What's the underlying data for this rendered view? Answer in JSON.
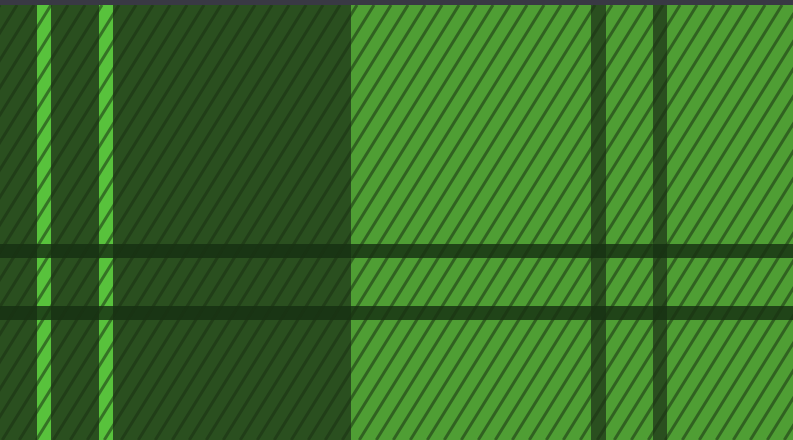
{
  "pattern": {
    "type": "tartan-plaid",
    "colors": {
      "frame": "#393944",
      "dark_green": "#2a4f1f",
      "light_green": "#4f9e34",
      "bright_stripe": "#58c23c",
      "dark_stripe": "#2a4f1f",
      "horizontal_band": "#163012",
      "twill_line": "#1a3212"
    }
  }
}
